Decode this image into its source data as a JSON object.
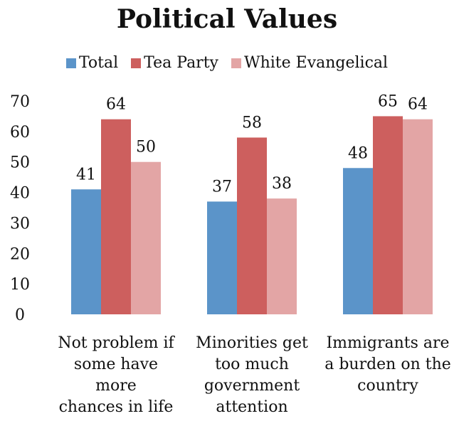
{
  "chart_data": {
    "type": "bar",
    "title": "Political Values",
    "categories": [
      [
        "Not problem if",
        "some have more",
        "chances in life"
      ],
      [
        "Minorities get",
        "too much",
        "government",
        "attention"
      ],
      [
        "Immigrants are",
        "a burden on the",
        "country"
      ]
    ],
    "series": [
      {
        "name": "Total",
        "values": [
          41,
          37,
          48
        ],
        "color": "#5b94c9"
      },
      {
        "name": "Tea Party",
        "values": [
          64,
          58,
          65
        ],
        "color": "#cd5f5e"
      },
      {
        "name": "White Evangelical",
        "values": [
          50,
          38,
          64
        ],
        "color": "#e3a5a5"
      }
    ],
    "yticks": [
      "0",
      "10",
      "20",
      "30",
      "40",
      "50",
      "60",
      "70"
    ],
    "ylim": [
      0,
      70
    ],
    "grid": false,
    "legend_position": "top"
  }
}
